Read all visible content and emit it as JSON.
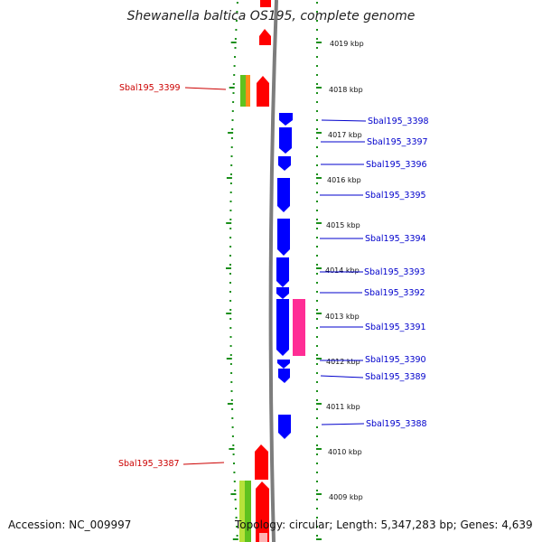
{
  "title": "Shewanella baltica OS195, complete genome",
  "accession": "Accession: NC_009997",
  "topology": "Topology: circular; Length: 5,347,283 bp; Genes: 4,639",
  "colors": {
    "forward_gene": "#ff0000",
    "reverse_gene": "#0000ff",
    "orange_feature": "#ff8c1a",
    "green_feature": "#5fc21f",
    "magenta_feature": "#ff2d95",
    "tick_green": "#1a8f1a",
    "backbone": "#808080"
  },
  "scale_labels": [
    "4019 kbp",
    "4018 kbp",
    "4017 kbp",
    "4016 kbp",
    "4015 kbp",
    "4014 kbp",
    "4013 kbp",
    "4012 kbp",
    "4011 kbp",
    "4010 kbp",
    "4009 kbp"
  ],
  "left_labels": [
    "Sbal195_3399",
    "Sbal195_3387"
  ],
  "right_labels": [
    "Sbal195_3398",
    "Sbal195_3397",
    "Sbal195_3396",
    "Sbal195_3395",
    "Sbal195_3394",
    "Sbal195_3393",
    "Sbal195_3392",
    "Sbal195_3391",
    "Sbal195_3390",
    "Sbal195_3389",
    "Sbal195_3388"
  ]
}
